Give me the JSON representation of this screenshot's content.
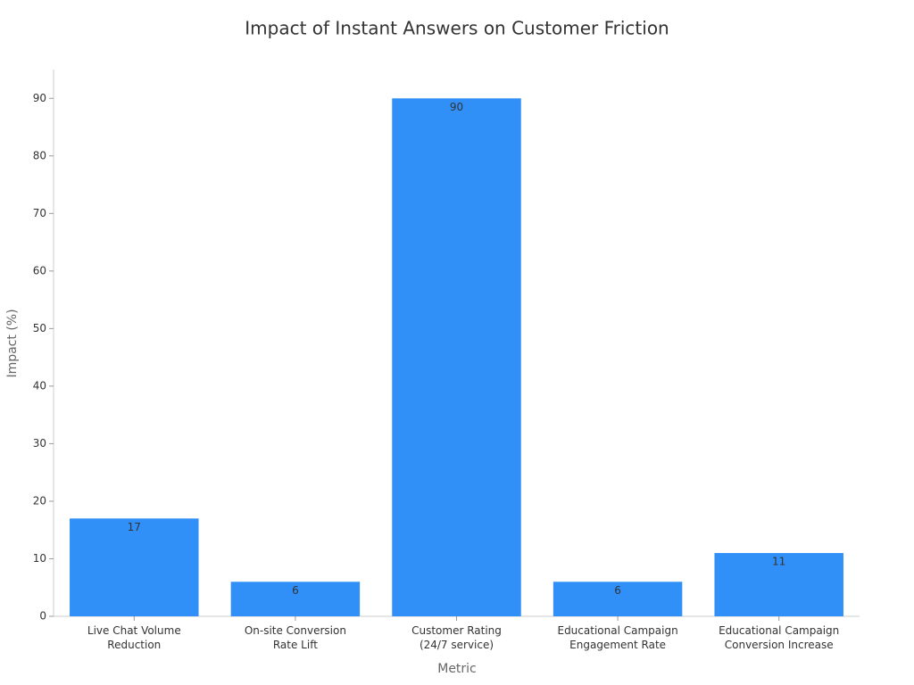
{
  "chart_data": {
    "type": "bar",
    "title": "Impact of Instant Answers on Customer Friction",
    "x_label": "Metric",
    "y_label": "Impact (%)",
    "categories": [
      "Live Chat Volume\nReduction",
      "On-site Conversion\nRate Lift",
      "Customer Rating\n(24/7 service)",
      "Educational Campaign\nEngagement Rate",
      "Educational Campaign\nConversion Increase"
    ],
    "values": [
      17,
      6,
      90,
      6,
      11
    ],
    "color": "#3090f8",
    "ylim": [
      0,
      95
    ],
    "yticks": [
      0,
      10,
      20,
      30,
      40,
      50,
      60,
      70,
      80,
      90
    ],
    "grid": false
  }
}
